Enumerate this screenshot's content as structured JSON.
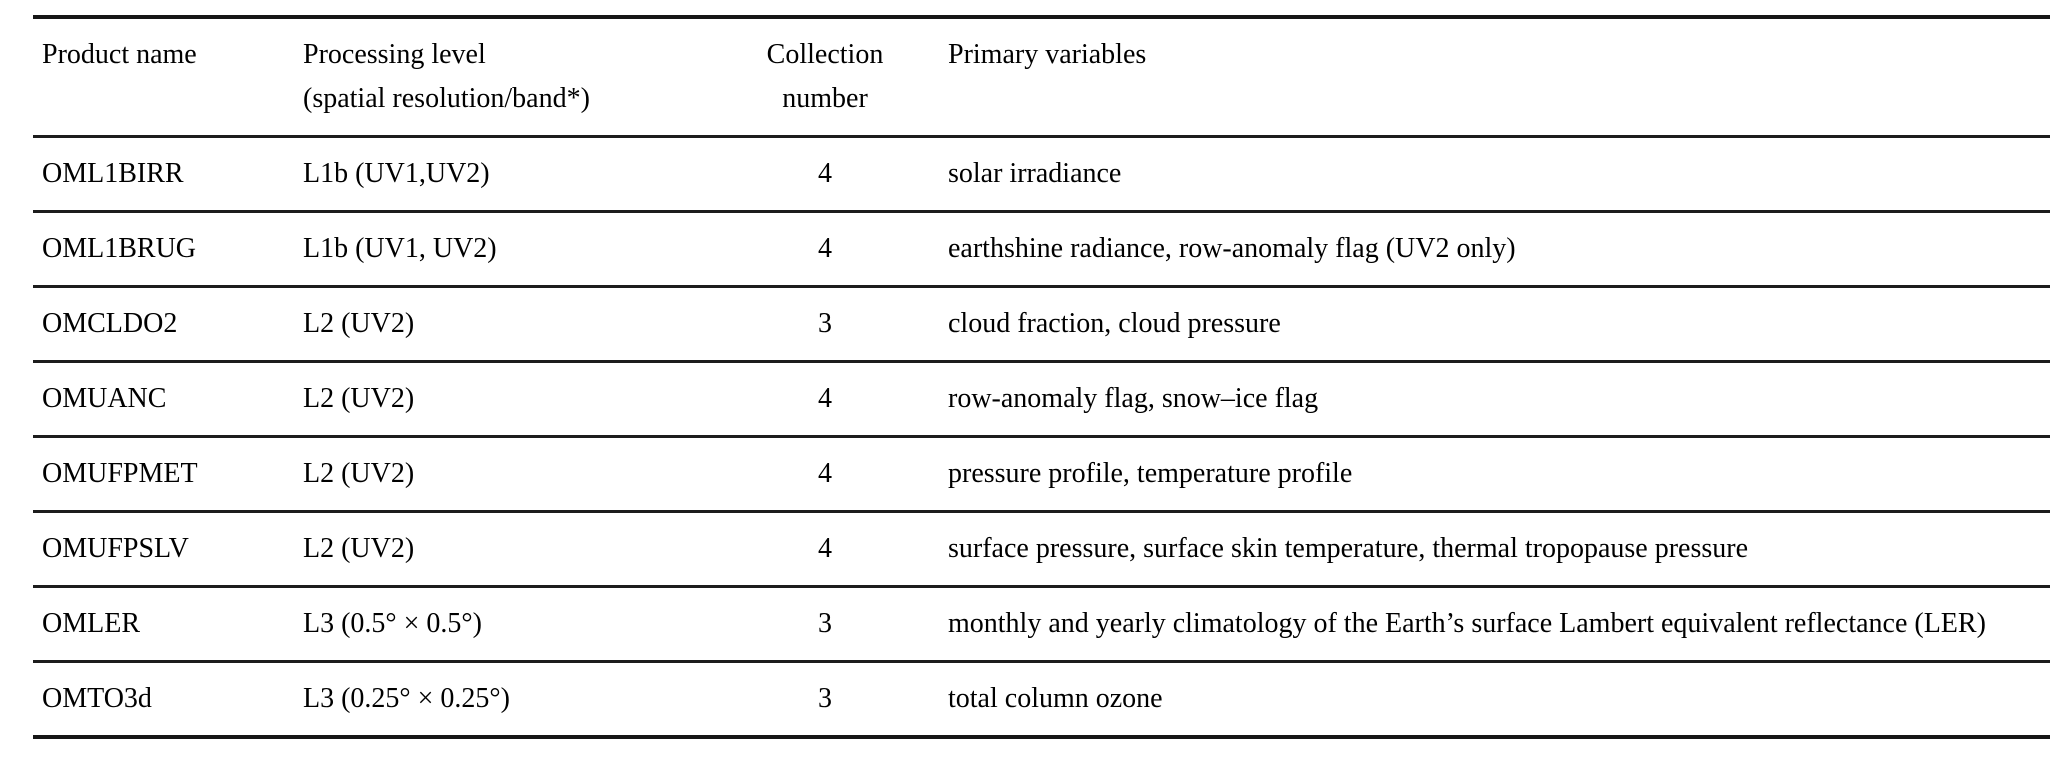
{
  "table": {
    "columns": [
      {
        "label": "Product name",
        "sublabel": ""
      },
      {
        "label": "Processing level",
        "sublabel": "(spatial resolution/band*)"
      },
      {
        "label": "Collection",
        "sublabel": "number"
      },
      {
        "label": "Primary variables",
        "sublabel": ""
      }
    ],
    "rows": [
      {
        "product": "OML1BIRR",
        "level": "L1b (UV1,UV2)",
        "collection": "4",
        "variables": "solar irradiance"
      },
      {
        "product": "OML1BRUG",
        "level": "L1b (UV1, UV2)",
        "collection": "4",
        "variables": "earthshine radiance, row-anomaly flag (UV2 only)"
      },
      {
        "product": "OMCLDO2",
        "level": "L2 (UV2)",
        "collection": "3",
        "variables": "cloud fraction, cloud pressure"
      },
      {
        "product": "OMUANC",
        "level": "L2 (UV2)",
        "collection": "4",
        "variables": "row-anomaly flag, snow–ice flag"
      },
      {
        "product": "OMUFPMET",
        "level": "L2 (UV2)",
        "collection": "4",
        "variables": "pressure profile, temperature profile"
      },
      {
        "product": "OMUFPSLV",
        "level": "L2 (UV2)",
        "collection": "4",
        "variables": "surface pressure, surface skin temperature, thermal tropopause pressure"
      },
      {
        "product": "OMLER",
        "level": "L3 (0.5° × 0.5°)",
        "collection": "3",
        "variables": "monthly and yearly climatology of the Earth’s surface Lambert equivalent reflectance (LER)"
      },
      {
        "product": "OMTO3d",
        "level": "L3 (0.25° × 0.25°)",
        "collection": "3",
        "variables": "total column ozone"
      }
    ],
    "text_color": "#000000",
    "rule_color": "#1c1c1c"
  }
}
